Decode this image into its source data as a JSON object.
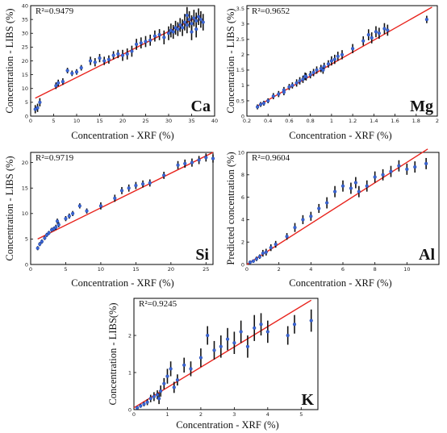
{
  "chart_data": [
    {
      "type": "scatter",
      "element": "Ca",
      "r2_text": "R²=0.9479",
      "xlabel": "Concentration  - XRF (%)",
      "ylabel": "Concentration  - LIBS (%)",
      "xlim": [
        0,
        40
      ],
      "ylim": [
        0,
        40
      ],
      "xticks": [
        0,
        5,
        10,
        15,
        20,
        25,
        30,
        35,
        40
      ],
      "yticks": [
        0,
        5,
        10,
        15,
        20,
        25,
        30,
        35,
        40
      ],
      "fit_line": [
        [
          1,
          6.5
        ],
        [
          37,
          36.5
        ]
      ],
      "points": [
        [
          1,
          2.5,
          1.5
        ],
        [
          1.5,
          3,
          1.5
        ],
        [
          2,
          5,
          1.5
        ],
        [
          5.5,
          11,
          1.2
        ],
        [
          6,
          12,
          1.2
        ],
        [
          7,
          12.5,
          1.2
        ],
        [
          8,
          16.5,
          1
        ],
        [
          9,
          15.5,
          1
        ],
        [
          10,
          16,
          1
        ],
        [
          11,
          17.5,
          1
        ],
        [
          13,
          20,
          1.5
        ],
        [
          14,
          19.5,
          1.5
        ],
        [
          15,
          21,
          1.5
        ],
        [
          16,
          20,
          1.5
        ],
        [
          17,
          20.5,
          1.5
        ],
        [
          18,
          22,
          1.5
        ],
        [
          19,
          22.5,
          1.5
        ],
        [
          20,
          22,
          2
        ],
        [
          21,
          22.5,
          2
        ],
        [
          22,
          23.5,
          2
        ],
        [
          23,
          26,
          2
        ],
        [
          24,
          26.5,
          2
        ],
        [
          25,
          27,
          2
        ],
        [
          26,
          27.5,
          2
        ],
        [
          27,
          29,
          2
        ],
        [
          28,
          29.5,
          2
        ],
        [
          29,
          28.5,
          2.5
        ],
        [
          30,
          30,
          2.5
        ],
        [
          30.5,
          31,
          2.5
        ],
        [
          31,
          30.5,
          2.5
        ],
        [
          31.5,
          32,
          2.5
        ],
        [
          32,
          31.5,
          2.5
        ],
        [
          32.5,
          33,
          2.5
        ],
        [
          33,
          32,
          3
        ],
        [
          33.5,
          34,
          3
        ],
        [
          34,
          33,
          3
        ],
        [
          34.5,
          35,
          3
        ],
        [
          35,
          33.5,
          3
        ],
        [
          35.5,
          35.5,
          3
        ],
        [
          36,
          34.5,
          3
        ],
        [
          36.5,
          36,
          3
        ],
        [
          37,
          35,
          3
        ],
        [
          37.5,
          34,
          3
        ],
        [
          36,
          31.5,
          3
        ],
        [
          35,
          30.5,
          3
        ],
        [
          34,
          36.5,
          3
        ]
      ]
    },
    {
      "type": "scatter",
      "element": "Mg",
      "r2_text": "R²=0.9652",
      "xlabel": "Concentration  - XRF (%)",
      "ylabel": "Concentration  - LIBS (%)",
      "xlim": [
        0.2,
        2.0
      ],
      "ylim": [
        0,
        3.6
      ],
      "xticks": [
        0.2,
        0.4,
        0.6,
        0.8,
        1.0,
        1.2,
        1.4,
        1.6,
        1.8,
        2.0
      ],
      "yticks": [
        0.0,
        0.5,
        1.0,
        1.5,
        2.0,
        2.5,
        3.0,
        3.5
      ],
      "fit_line": [
        [
          0.3,
          0.33
        ],
        [
          1.95,
          3.55
        ]
      ],
      "points": [
        [
          0.3,
          0.3,
          0.08
        ],
        [
          0.33,
          0.38,
          0.08
        ],
        [
          0.36,
          0.42,
          0.08
        ],
        [
          0.4,
          0.5,
          0.08
        ],
        [
          0.45,
          0.65,
          0.1
        ],
        [
          0.5,
          0.72,
          0.1
        ],
        [
          0.55,
          0.85,
          0.1
        ],
        [
          0.6,
          0.95,
          0.1
        ],
        [
          0.63,
          1.0,
          0.1
        ],
        [
          0.67,
          1.08,
          0.12
        ],
        [
          0.7,
          1.15,
          0.12
        ],
        [
          0.73,
          1.2,
          0.12
        ],
        [
          0.76,
          1.28,
          0.12
        ],
        [
          0.8,
          1.35,
          0.12
        ],
        [
          0.83,
          1.42,
          0.12
        ],
        [
          0.86,
          1.5,
          0.12
        ],
        [
          0.9,
          1.55,
          0.12
        ],
        [
          0.93,
          1.62,
          0.12
        ],
        [
          0.97,
          1.7,
          0.12
        ],
        [
          1.0,
          1.8,
          0.15
        ],
        [
          1.03,
          1.85,
          0.15
        ],
        [
          1.06,
          1.95,
          0.15
        ],
        [
          1.1,
          2.0,
          0.15
        ],
        [
          1.2,
          2.2,
          0.15
        ],
        [
          1.3,
          2.45,
          0.15
        ],
        [
          1.35,
          2.65,
          0.18
        ],
        [
          1.38,
          2.55,
          0.18
        ],
        [
          1.42,
          2.75,
          0.18
        ],
        [
          1.45,
          2.7,
          0.18
        ],
        [
          1.5,
          2.85,
          0.18
        ],
        [
          1.53,
          2.8,
          0.18
        ],
        [
          1.9,
          3.15,
          0.12
        ],
        [
          0.55,
          0.78,
          0.1
        ],
        [
          0.75,
          1.3,
          0.12
        ],
        [
          0.92,
          1.5,
          0.12
        ]
      ]
    },
    {
      "type": "scatter",
      "element": "Si",
      "r2_text": "R²=0.9719",
      "xlabel": "Concentration  - XRF (%)",
      "ylabel": "Concentration  - LIBS (%)",
      "xlim": [
        0,
        26
      ],
      "ylim": [
        0,
        22
      ],
      "xticks": [
        0,
        5,
        10,
        15,
        20,
        25
      ],
      "yticks": [
        0,
        5,
        10,
        15,
        20
      ],
      "fit_line": [
        [
          1,
          5
        ],
        [
          26,
          22
        ]
      ],
      "points": [
        [
          1,
          3.2,
          0.4
        ],
        [
          1.3,
          4,
          0.4
        ],
        [
          1.6,
          4.5,
          0.4
        ],
        [
          2,
          5.2,
          0.4
        ],
        [
          2.3,
          5.8,
          0.4
        ],
        [
          2.6,
          6.2,
          0.4
        ],
        [
          3,
          6.8,
          0.4
        ],
        [
          3.3,
          7,
          0.4
        ],
        [
          3.6,
          7.3,
          0.5
        ],
        [
          4,
          7.8,
          0.5
        ],
        [
          5,
          9,
          0.5
        ],
        [
          5.5,
          9.5,
          0.5
        ],
        [
          6,
          10,
          0.5
        ],
        [
          8,
          10.5,
          0.5
        ],
        [
          10,
          11.5,
          0.7
        ],
        [
          12,
          13,
          0.7
        ],
        [
          13,
          14.5,
          0.7
        ],
        [
          14,
          15,
          0.7
        ],
        [
          15,
          15.5,
          0.7
        ],
        [
          16,
          15.8,
          0.7
        ],
        [
          17,
          16,
          0.7
        ],
        [
          19,
          17.5,
          0.7
        ],
        [
          21,
          19.5,
          0.8
        ],
        [
          22,
          19.8,
          0.8
        ],
        [
          23,
          20,
          0.8
        ],
        [
          24,
          20.5,
          0.8
        ],
        [
          25,
          21,
          0.8
        ],
        [
          26,
          20.8,
          0.8
        ],
        [
          3.8,
          8.5,
          0.5
        ],
        [
          7,
          11.5,
          0.5
        ]
      ]
    },
    {
      "type": "scatter",
      "element": "Al",
      "r2_text": "R²=0.9604",
      "xlabel": "Concentration  - XRF (%)",
      "ylabel": "Predicted concentration (%)",
      "xlim": [
        0,
        12
      ],
      "ylim": [
        0,
        10
      ],
      "xticks": [
        0,
        2,
        4,
        6,
        8,
        10
      ],
      "yticks": [
        0,
        2,
        4,
        6,
        8,
        10
      ],
      "fit_line": [
        [
          0,
          0
        ],
        [
          11.3,
          10.3
        ]
      ],
      "points": [
        [
          0.2,
          0.2,
          0.15
        ],
        [
          0.4,
          0.3,
          0.15
        ],
        [
          0.6,
          0.5,
          0.2
        ],
        [
          0.8,
          0.7,
          0.2
        ],
        [
          1,
          1,
          0.3
        ],
        [
          1.2,
          1.1,
          0.3
        ],
        [
          1.5,
          1.5,
          0.3
        ],
        [
          1.8,
          1.8,
          0.3
        ],
        [
          2.5,
          2.5,
          0.3
        ],
        [
          3,
          3.3,
          0.4
        ],
        [
          3.5,
          4,
          0.4
        ],
        [
          4,
          4.3,
          0.4
        ],
        [
          4.5,
          5,
          0.4
        ],
        [
          5,
          5.5,
          0.5
        ],
        [
          5.5,
          6.5,
          0.5
        ],
        [
          6,
          7,
          0.5
        ],
        [
          6.5,
          6.8,
          0.5
        ],
        [
          7,
          6.5,
          0.5
        ],
        [
          7.5,
          7,
          0.5
        ],
        [
          8,
          7.8,
          0.5
        ],
        [
          8.5,
          8,
          0.5
        ],
        [
          9,
          8.3,
          0.5
        ],
        [
          9.5,
          8.8,
          0.5
        ],
        [
          10,
          8.5,
          0.5
        ],
        [
          10.5,
          8.7,
          0.5
        ],
        [
          11.2,
          9,
          0.5
        ],
        [
          6.8,
          7.3,
          0.5
        ]
      ]
    },
    {
      "type": "scatter",
      "element": "K",
      "r2_text": "R²=0.9245",
      "xlabel": "Concentration  - XRF (%)",
      "ylabel": "Concentration  - LIBS(%)",
      "xlim": [
        0,
        5.5
      ],
      "ylim": [
        0,
        3
      ],
      "xticks": [
        0,
        1,
        2,
        3,
        4,
        5
      ],
      "yticks": [
        0,
        1,
        2
      ],
      "fit_line": [
        [
          0,
          0.05
        ],
        [
          5.3,
          2.95
        ]
      ],
      "points": [
        [
          0.1,
          0.05,
          0.04
        ],
        [
          0.2,
          0.1,
          0.05
        ],
        [
          0.3,
          0.15,
          0.06
        ],
        [
          0.4,
          0.2,
          0.08
        ],
        [
          0.5,
          0.3,
          0.1
        ],
        [
          0.6,
          0.35,
          0.12
        ],
        [
          0.7,
          0.4,
          0.12
        ],
        [
          0.8,
          0.5,
          0.15
        ],
        [
          0.9,
          0.7,
          0.15
        ],
        [
          1,
          0.9,
          0.2
        ],
        [
          1.1,
          1.1,
          0.2
        ],
        [
          1.3,
          0.8,
          0.15
        ],
        [
          1.5,
          1.2,
          0.2
        ],
        [
          1.7,
          1.1,
          0.2
        ],
        [
          2,
          1.4,
          0.25
        ],
        [
          2.2,
          2.0,
          0.25
        ],
        [
          2.4,
          1.6,
          0.25
        ],
        [
          2.6,
          1.7,
          0.3
        ],
        [
          2.8,
          1.9,
          0.3
        ],
        [
          3,
          1.8,
          0.3
        ],
        [
          3.2,
          2.1,
          0.3
        ],
        [
          3.4,
          1.7,
          0.3
        ],
        [
          3.6,
          2.2,
          0.35
        ],
        [
          3.8,
          2.3,
          0.3
        ],
        [
          4,
          2.1,
          0.3
        ],
        [
          4.6,
          2.0,
          0.25
        ],
        [
          4.8,
          2.3,
          0.25
        ],
        [
          5.3,
          2.4,
          0.3
        ],
        [
          1.2,
          0.6,
          0.15
        ],
        [
          0.75,
          0.3,
          0.15
        ]
      ]
    }
  ]
}
